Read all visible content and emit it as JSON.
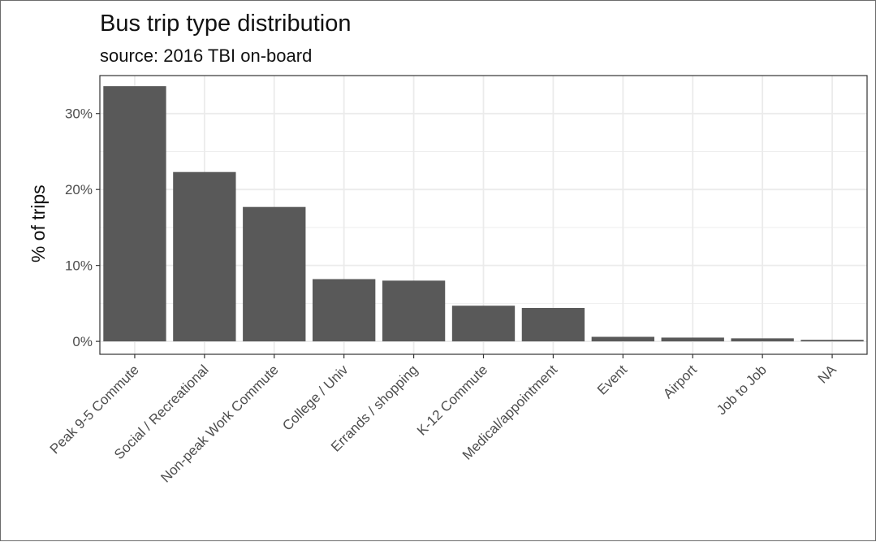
{
  "chart_data": {
    "type": "bar",
    "title": "Bus trip type distribution",
    "subtitle": "source: 2016 TBI on-board",
    "xlabel": "",
    "ylabel": "% of trips",
    "categories": [
      "Peak 9-5 Commute",
      "Social / Recreational",
      "Non-peak Work Commute",
      "College / Univ",
      "Errands / shopping",
      "K-12 Commute",
      "Medical/appointment",
      "Event",
      "Airport",
      "Job to Job",
      "NA"
    ],
    "values": [
      33.6,
      22.3,
      17.7,
      8.2,
      8.0,
      4.7,
      4.4,
      0.6,
      0.5,
      0.4,
      0.2
    ],
    "unit": "%",
    "ylim": [
      -1.7,
      35.0
    ],
    "yticks": [
      0,
      10,
      20,
      30
    ],
    "ytick_labels": [
      "0%",
      "10%",
      "20%",
      "30%"
    ],
    "grid": true,
    "bar_color": "#595959",
    "grid_color": "#ebebeb",
    "panel_border_color": "#333333"
  }
}
